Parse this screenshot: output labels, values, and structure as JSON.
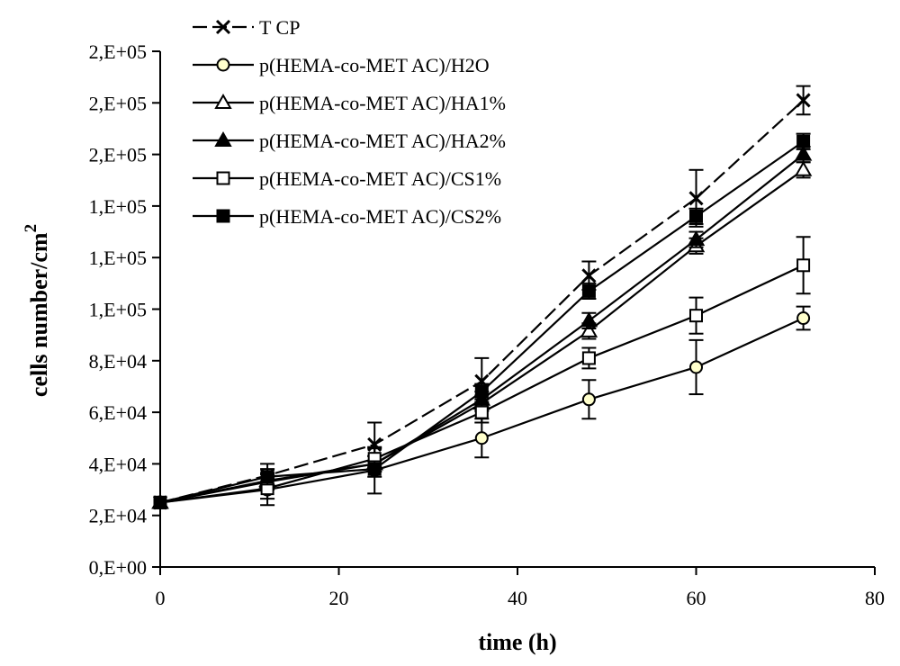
{
  "chart_data": {
    "type": "line",
    "title": "",
    "xlabel": "time (h)",
    "ylabel": "cells number/cm",
    "ylabel_superscript": "2",
    "xlim": [
      0,
      80
    ],
    "ylim": [
      0,
      200000
    ],
    "x_ticks": [
      0,
      20,
      40,
      60,
      80
    ],
    "x_tick_labels": [
      "0",
      "20",
      "40",
      "60",
      "80"
    ],
    "y_ticks": [
      0,
      20000,
      40000,
      60000,
      80000,
      100000,
      120000,
      140000,
      160000,
      180000,
      200000
    ],
    "y_tick_labels": [
      "0,E+00",
      "2,E+04",
      "4,E+04",
      "6,E+04",
      "8,E+04",
      "1,E+05",
      "1,E+05",
      "1,E+05",
      "2,E+05",
      "2,E+05",
      "2,E+05"
    ],
    "grid": false,
    "legend_position": "top-left",
    "x": [
      0,
      12,
      24,
      36,
      48,
      60,
      72
    ],
    "series": [
      {
        "name": "T CP",
        "marker": "x",
        "dash": "long",
        "values": [
          25000,
          35500,
          47500,
          72000,
          113000,
          143000,
          181000
        ],
        "errors": [
          0,
          4500,
          8500,
          9000,
          5500,
          11000,
          5500
        ]
      },
      {
        "name": "p(HEMA-co-MET AC)/H2O",
        "marker": "circle-open",
        "dash": "solid",
        "values": [
          25000,
          30000,
          37500,
          50000,
          65000,
          77500,
          96500
        ],
        "errors": [
          0,
          6000,
          9000,
          7500,
          7500,
          10500,
          4500
        ]
      },
      {
        "name": "p(HEMA-co-MET AC)/HA1%",
        "marker": "triangle-open",
        "dash": "solid",
        "values": [
          25000,
          33000,
          40000,
          63500,
          91500,
          124500,
          154000
        ],
        "errors": [
          0,
          3000,
          3000,
          3000,
          3000,
          3000,
          3000
        ]
      },
      {
        "name": "p(HEMA-co-MET AC)/HA2%",
        "marker": "triangle-filled",
        "dash": "solid",
        "values": [
          25000,
          33500,
          40000,
          65000,
          95500,
          127000,
          160000
        ],
        "errors": [
          0,
          3000,
          3000,
          3000,
          3000,
          3000,
          3000
        ]
      },
      {
        "name": "p(HEMA-co-MET AC)/CS1%",
        "marker": "square-open",
        "dash": "solid",
        "values": [
          25000,
          30500,
          42000,
          60000,
          81000,
          97500,
          117000
        ],
        "errors": [
          0,
          4000,
          4000,
          4000,
          4000,
          7000,
          11000
        ]
      },
      {
        "name": "p(HEMA-co-MET AC)/CS2%",
        "marker": "square-filled",
        "dash": "solid",
        "values": [
          25000,
          35000,
          38000,
          68000,
          107000,
          136000,
          165000
        ],
        "errors": [
          0,
          3000,
          3000,
          3000,
          3000,
          3000,
          3000
        ]
      }
    ]
  }
}
